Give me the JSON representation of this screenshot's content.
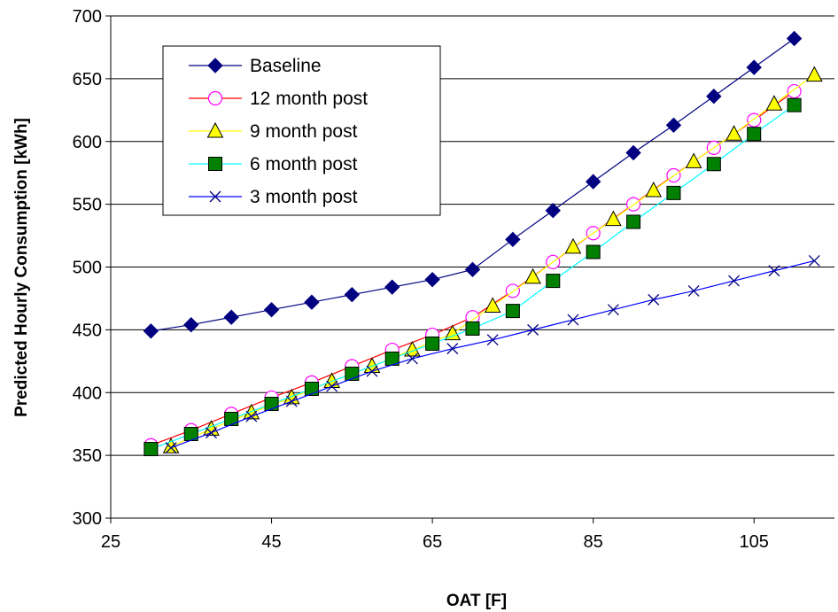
{
  "chart_data": {
    "type": "line",
    "title": "",
    "xlabel": "OAT [F]",
    "ylabel": "Predicted Hourly Consumption [kWh]",
    "xlim": [
      25,
      115
    ],
    "ylim": [
      300,
      700
    ],
    "xticks": [
      25,
      45,
      65,
      85,
      105
    ],
    "yticks": [
      300,
      350,
      400,
      450,
      500,
      550,
      600,
      650,
      700
    ],
    "grid": "horizontal",
    "legend_position": "top-left",
    "series": [
      {
        "name": "Baseline",
        "marker": "diamond",
        "color": "#000080",
        "x": [
          30,
          35,
          40,
          45,
          50,
          55,
          60,
          65,
          70,
          75,
          80,
          85,
          90,
          95,
          100,
          105,
          110
        ],
        "y": [
          449,
          454,
          460,
          466,
          472,
          478,
          484,
          490,
          498,
          522,
          545,
          568,
          591,
          613,
          636,
          659,
          682
        ]
      },
      {
        "name": "12 month post",
        "marker": "circle",
        "color": "#FF0000",
        "markerColor": "#FF00FF",
        "x": [
          30,
          35,
          40,
          45,
          50,
          55,
          60,
          65,
          70,
          75,
          80,
          85,
          90,
          95,
          100,
          105,
          110
        ],
        "y": [
          358,
          370,
          383,
          396,
          408,
          421,
          434,
          446,
          460,
          481,
          504,
          527,
          550,
          573,
          595,
          617,
          640
        ]
      },
      {
        "name": "9 month post",
        "marker": "triangle",
        "color": "#FFFF00",
        "markerColor": "#000000",
        "markerFill": "#FFFF00",
        "x": [
          32.5,
          37.5,
          42.5,
          47.5,
          52.5,
          57.5,
          62.5,
          67.5,
          72.5,
          77.5,
          82.5,
          87.5,
          92.5,
          97.5,
          102.5,
          107.5,
          112.5
        ],
        "y": [
          357,
          371,
          384,
          396,
          409,
          421,
          434,
          447,
          469,
          492,
          516,
          538,
          561,
          584,
          606,
          630,
          653
        ]
      },
      {
        "name": "6 month post",
        "marker": "square",
        "color": "#00FFFF",
        "markerColor": "#000000",
        "markerFill": "#008000",
        "x": [
          30,
          35,
          40,
          45,
          50,
          55,
          60,
          65,
          70,
          75,
          80,
          85,
          90,
          95,
          100,
          105,
          110
        ],
        "y": [
          355,
          367,
          379,
          391,
          403,
          415,
          427,
          439,
          451,
          465,
          489,
          512,
          536,
          559,
          582,
          606,
          629
        ]
      },
      {
        "name": "3 month post",
        "marker": "x",
        "color": "#0000FF",
        "markerColor": "#000080",
        "x": [
          32.5,
          37.5,
          42.5,
          47.5,
          52.5,
          57.5,
          62.5,
          67.5,
          72.5,
          77.5,
          82.5,
          87.5,
          92.5,
          97.5,
          102.5,
          107.5,
          112.5
        ],
        "y": [
          356,
          368,
          381,
          393,
          405,
          417,
          427,
          435,
          442,
          450,
          458,
          466,
          474,
          481,
          489,
          497,
          505
        ]
      }
    ]
  }
}
